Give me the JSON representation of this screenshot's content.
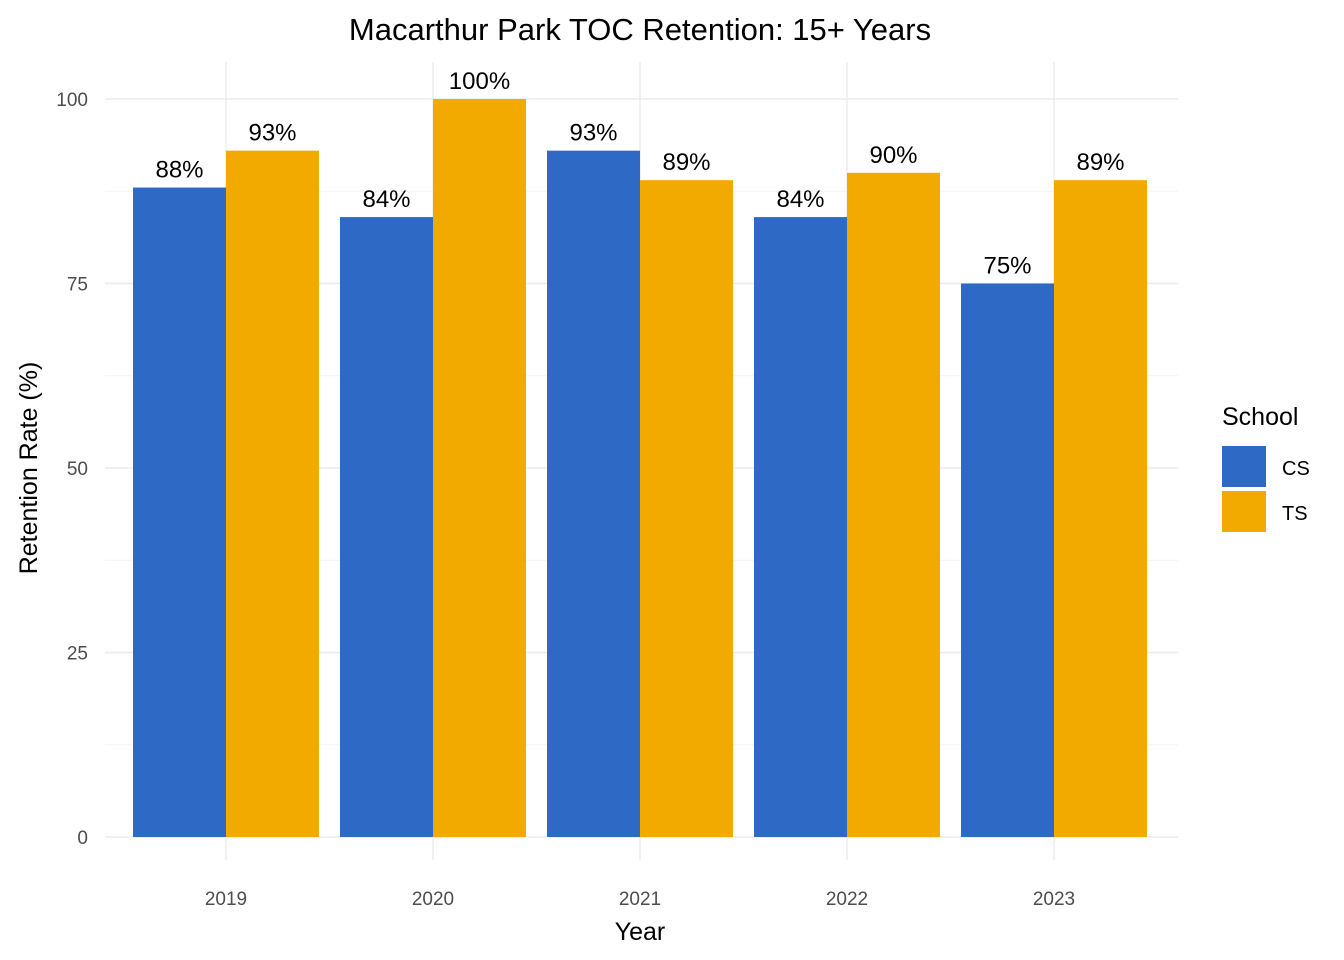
{
  "chart_data": {
    "type": "bar",
    "title": "Macarthur Park TOC Retention: 15+ Years",
    "xlabel": "Year",
    "ylabel": "Retention Rate (%)",
    "categories": [
      "2019",
      "2020",
      "2021",
      "2022",
      "2023"
    ],
    "series": [
      {
        "name": "CS",
        "color": "#2E69C5",
        "values": [
          88,
          84,
          93,
          84,
          75
        ],
        "labels": [
          "88%",
          "84%",
          "93%",
          "84%",
          "75%"
        ]
      },
      {
        "name": "TS",
        "color": "#F2A900",
        "values": [
          93,
          100,
          89,
          90,
          89
        ],
        "labels": [
          "93%",
          "100%",
          "89%",
          "90%",
          "89%"
        ]
      }
    ],
    "ylim": [
      0,
      100
    ],
    "yticks": [
      "0",
      "25",
      "50",
      "75",
      "100"
    ],
    "grid": true,
    "legend": {
      "title": "School",
      "position": "right"
    }
  }
}
